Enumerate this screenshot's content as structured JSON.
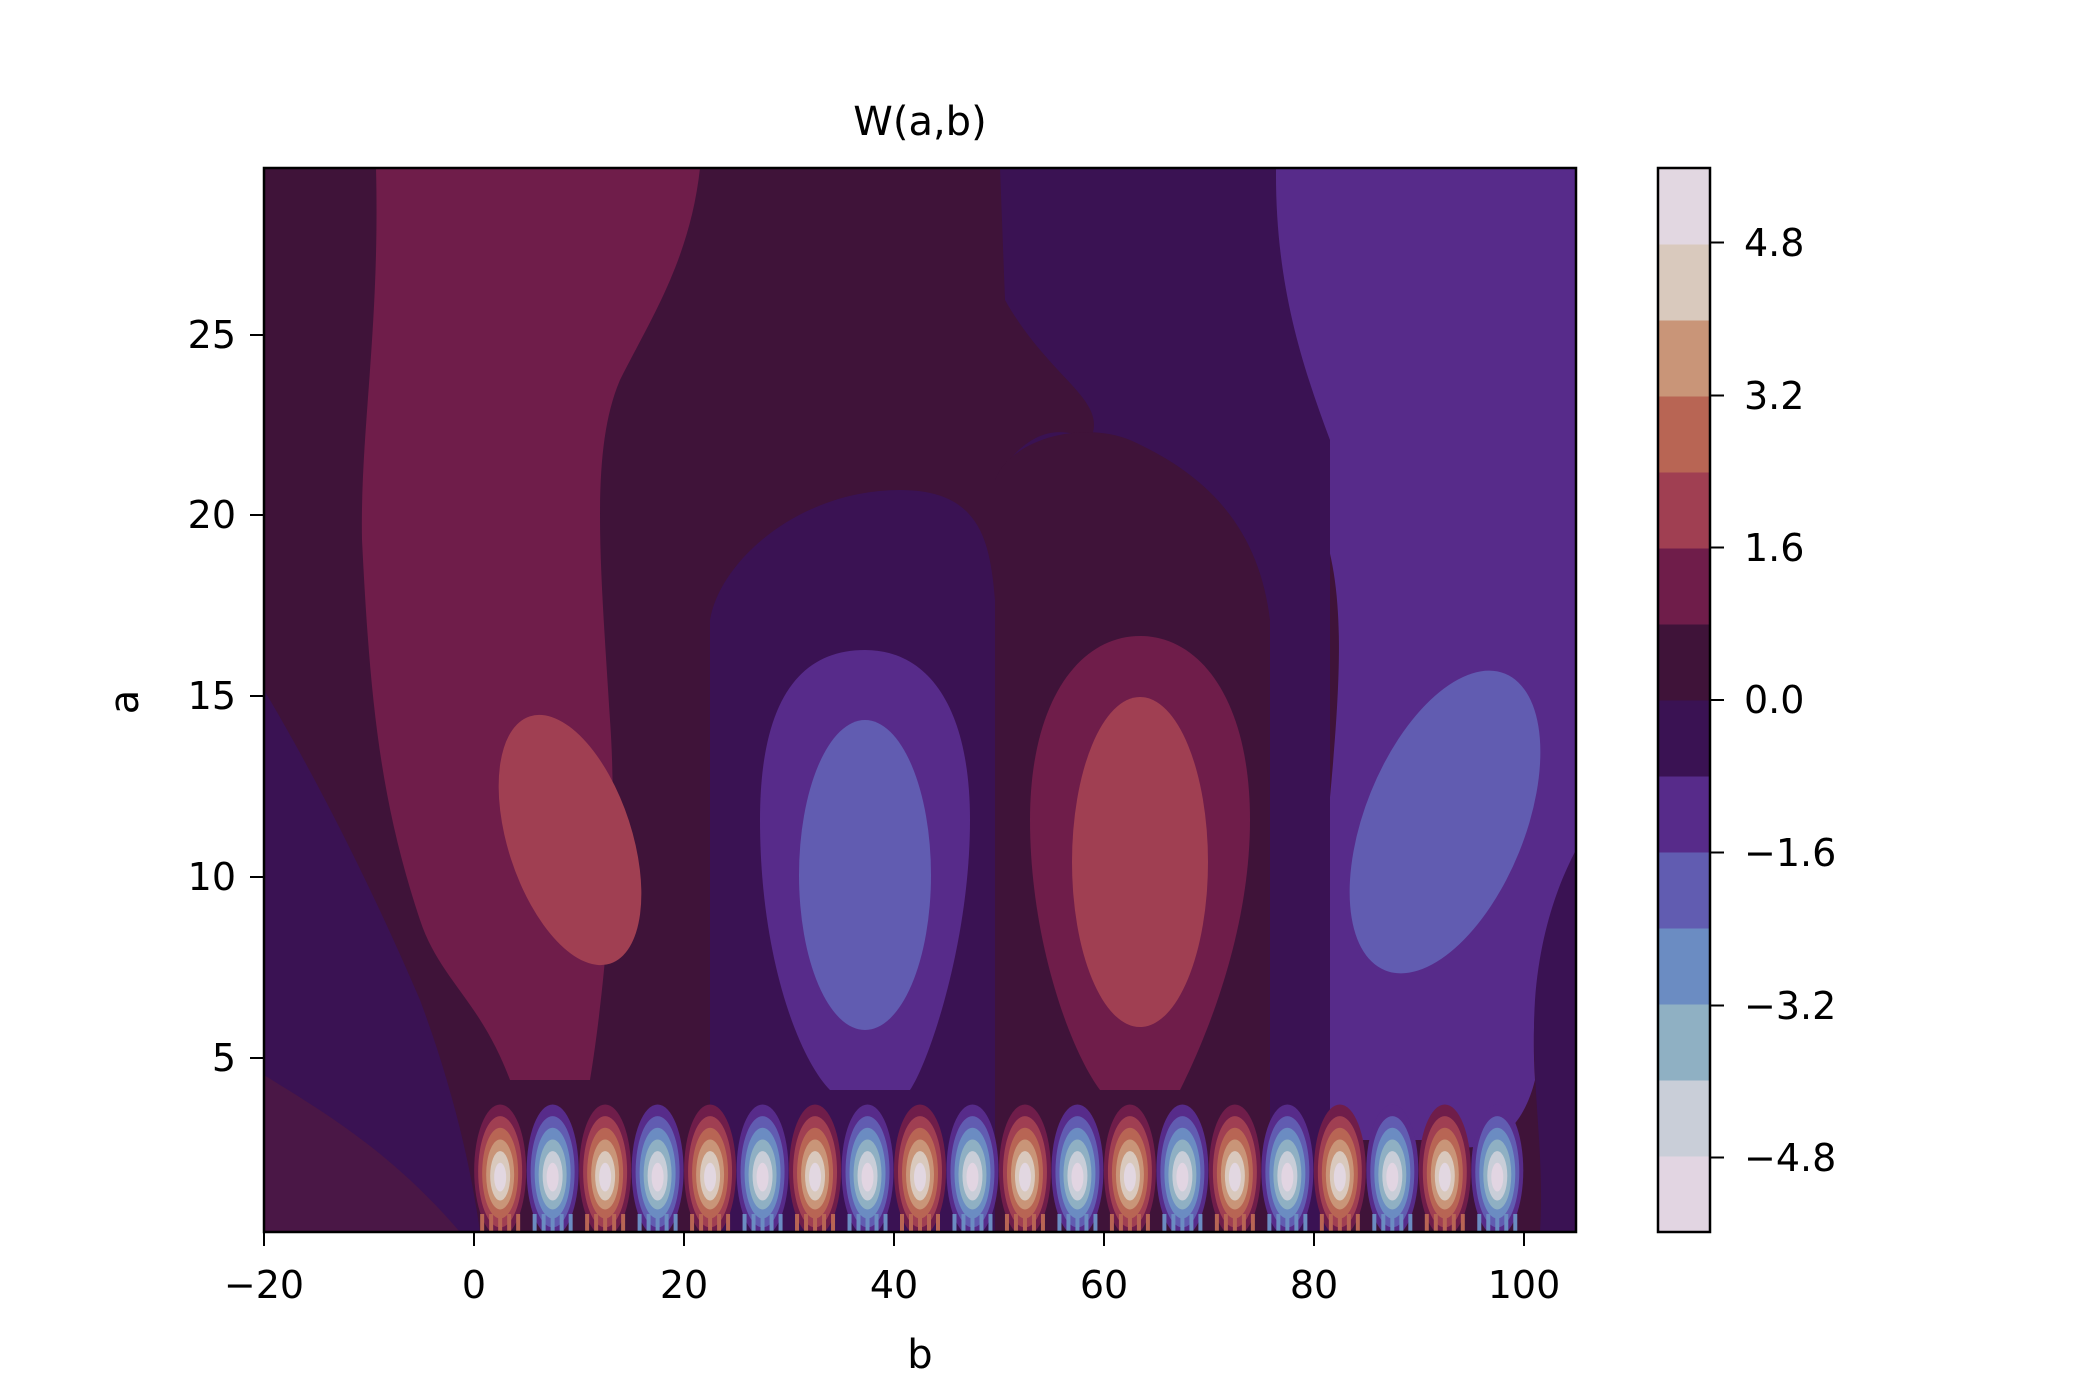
{
  "chart_data": {
    "type": "contourf",
    "title": "W(a,b)",
    "xlabel": "b",
    "ylabel": "a",
    "xlim": [
      -20,
      105
    ],
    "ylim": [
      0.1,
      29.5
    ],
    "x_ticks": [
      -20,
      0,
      20,
      40,
      60,
      80,
      100
    ],
    "x_tick_labels": [
      "−20",
      "0",
      "20",
      "40",
      "60",
      "80",
      "100"
    ],
    "y_ticks": [
      5,
      10,
      15,
      20,
      25
    ],
    "y_tick_labels": [
      "5",
      "10",
      "15",
      "20",
      "25"
    ],
    "colormap": "twilight_shifted",
    "colorbar": {
      "levels": [
        -5.6,
        -4.8,
        -4.0,
        -3.2,
        -2.4,
        -1.6,
        -0.8,
        0.0,
        0.8,
        1.6,
        2.4,
        3.2,
        4.0,
        4.8,
        5.6
      ],
      "band_colors": [
        "#e2d5e2",
        "#c9ced8",
        "#8fb0c3",
        "#6b8cc2",
        "#615cb1",
        "#572b8a",
        "#3a1253",
        "#3f1339",
        "#6f1d4a",
        "#a03f52",
        "#b86554",
        "#c99578",
        "#d9c9bd",
        "#e2d7e1"
      ],
      "ticks": [
        -4.8,
        -3.2,
        -1.6,
        0.0,
        1.6,
        3.2,
        4.8
      ],
      "tick_labels": [
        "−4.8",
        "−3.2",
        "−1.6",
        "0.0",
        "1.6",
        "3.2",
        "4.8"
      ]
    },
    "large_scale_lobes": [
      {
        "b_center": 11,
        "a_center": 10.5,
        "peak_level": 2.4,
        "sign": "positive"
      },
      {
        "b_center": 36,
        "a_center": 10,
        "peak_level": -2.4,
        "sign": "negative"
      },
      {
        "b_center": 62,
        "a_center": 10,
        "peak_level": 2.4,
        "sign": "positive"
      },
      {
        "b_center": 88,
        "a_center": 11,
        "peak_level": -2.4,
        "sign": "negative"
      }
    ],
    "small_scale_row": {
      "a_center": 1.8,
      "b_centers": [
        2.5,
        7.5,
        12.5,
        17.5,
        22.5,
        27.5,
        32.5,
        37.5,
        42.5,
        47.5,
        52.5,
        57.5,
        62.5,
        67.5,
        72.5,
        77.5,
        82.5,
        87.5,
        92.5,
        97.5
      ],
      "signs": [
        "positive",
        "negative",
        "positive",
        "negative",
        "positive",
        "negative",
        "positive",
        "negative",
        "positive",
        "negative",
        "positive",
        "negative",
        "positive",
        "negative",
        "positive",
        "negative",
        "positive",
        "negative",
        "positive",
        "negative"
      ],
      "peak_level": 5.6
    },
    "grid": false
  }
}
